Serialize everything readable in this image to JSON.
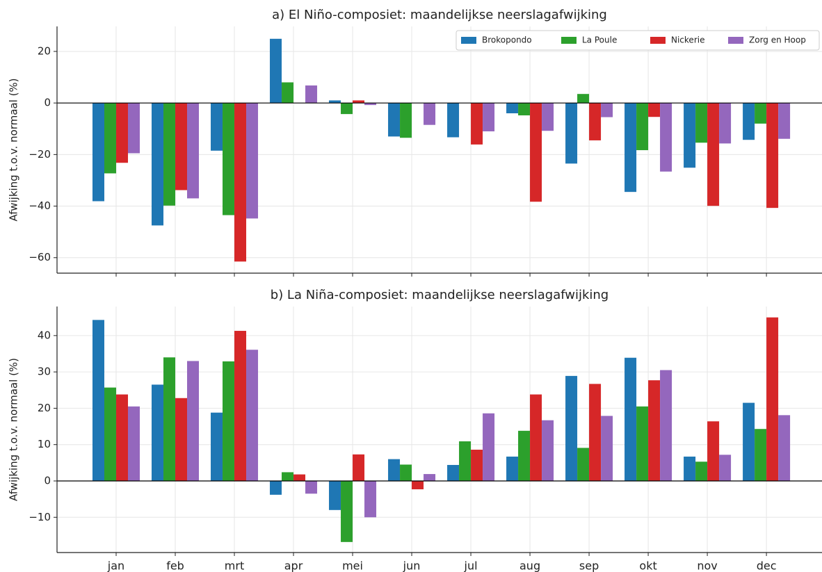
{
  "chart_data": [
    {
      "type": "bar",
      "title": "a) El Niño-composiet: maandelijkse neerslagafwijking",
      "ylabel": "Afwijking t.o.v. normaal (%)",
      "ylim": [
        -66,
        29.7
      ],
      "yticks": [
        {
          "value": -60,
          "label": "−60"
        },
        {
          "value": -40,
          "label": "−40"
        },
        {
          "value": -20,
          "label": "−20"
        },
        0,
        20
      ],
      "grid": true,
      "legend": "upper right",
      "series": [
        {
          "name": "Brokopondo",
          "color": "#1f77b4",
          "values": [
            -38.1,
            -47.5,
            -18.5,
            24.9,
            1.0,
            -13.0,
            -13.3,
            -4.0,
            -23.5,
            -34.5,
            -25.1,
            -14.3
          ]
        },
        {
          "name": "La Poule",
          "color": "#2ca02c",
          "values": [
            -27.3,
            -39.8,
            -43.5,
            8.0,
            -4.3,
            -13.5,
            0,
            -4.8,
            3.5,
            -18.3,
            -15.4,
            -8.0
          ]
        },
        {
          "name": "Nickerie",
          "color": "#d62728",
          "values": [
            -23.2,
            -33.8,
            -61.5,
            0,
            1.0,
            0,
            -16.1,
            -38.3,
            -14.5,
            -5.4,
            -39.9,
            -40.7
          ]
        },
        {
          "name": "Zorg en Hoop",
          "color": "#9467bd",
          "values": [
            -19.5,
            -37.0,
            -44.8,
            6.8,
            -0.8,
            -8.5,
            -11.0,
            -10.8,
            -5.5,
            -26.6,
            -15.7,
            -13.9
          ]
        }
      ]
    },
    {
      "type": "bar",
      "title": "b) La Niña-composiet: maandelijkse neerslagafwijking",
      "ylabel": "Afwijking t.o.v. normaal (%)",
      "categories": [
        "jan",
        "feb",
        "mrt",
        "apr",
        "mei",
        "jun",
        "jul",
        "aug",
        "sep",
        "okt",
        "nov",
        "dec"
      ],
      "ylim": [
        -19.7,
        48
      ],
      "yticks": [
        {
          "value": -10,
          "label": "−10"
        },
        0,
        10,
        20,
        30,
        40
      ],
      "grid": true,
      "series": [
        {
          "color": "#1f77b4",
          "values": [
            44.3,
            26.5,
            18.8,
            -3.8,
            -8.0,
            6.0,
            4.4,
            6.7,
            28.9,
            33.9,
            6.7,
            21.5
          ]
        },
        {
          "color": "#2ca02c",
          "values": [
            25.7,
            34.0,
            32.9,
            2.4,
            -16.8,
            4.5,
            10.9,
            13.8,
            9.1,
            20.5,
            5.3,
            14.3
          ]
        },
        {
          "color": "#d62728",
          "values": [
            23.8,
            22.8,
            41.3,
            1.8,
            7.3,
            -2.3,
            8.6,
            23.8,
            26.7,
            27.7,
            16.4,
            45.0
          ]
        },
        {
          "color": "#9467bd",
          "values": [
            20.5,
            33.0,
            36.1,
            -3.5,
            -10.0,
            1.9,
            18.6,
            16.7,
            17.9,
            30.5,
            7.2,
            18.1
          ]
        }
      ]
    }
  ]
}
